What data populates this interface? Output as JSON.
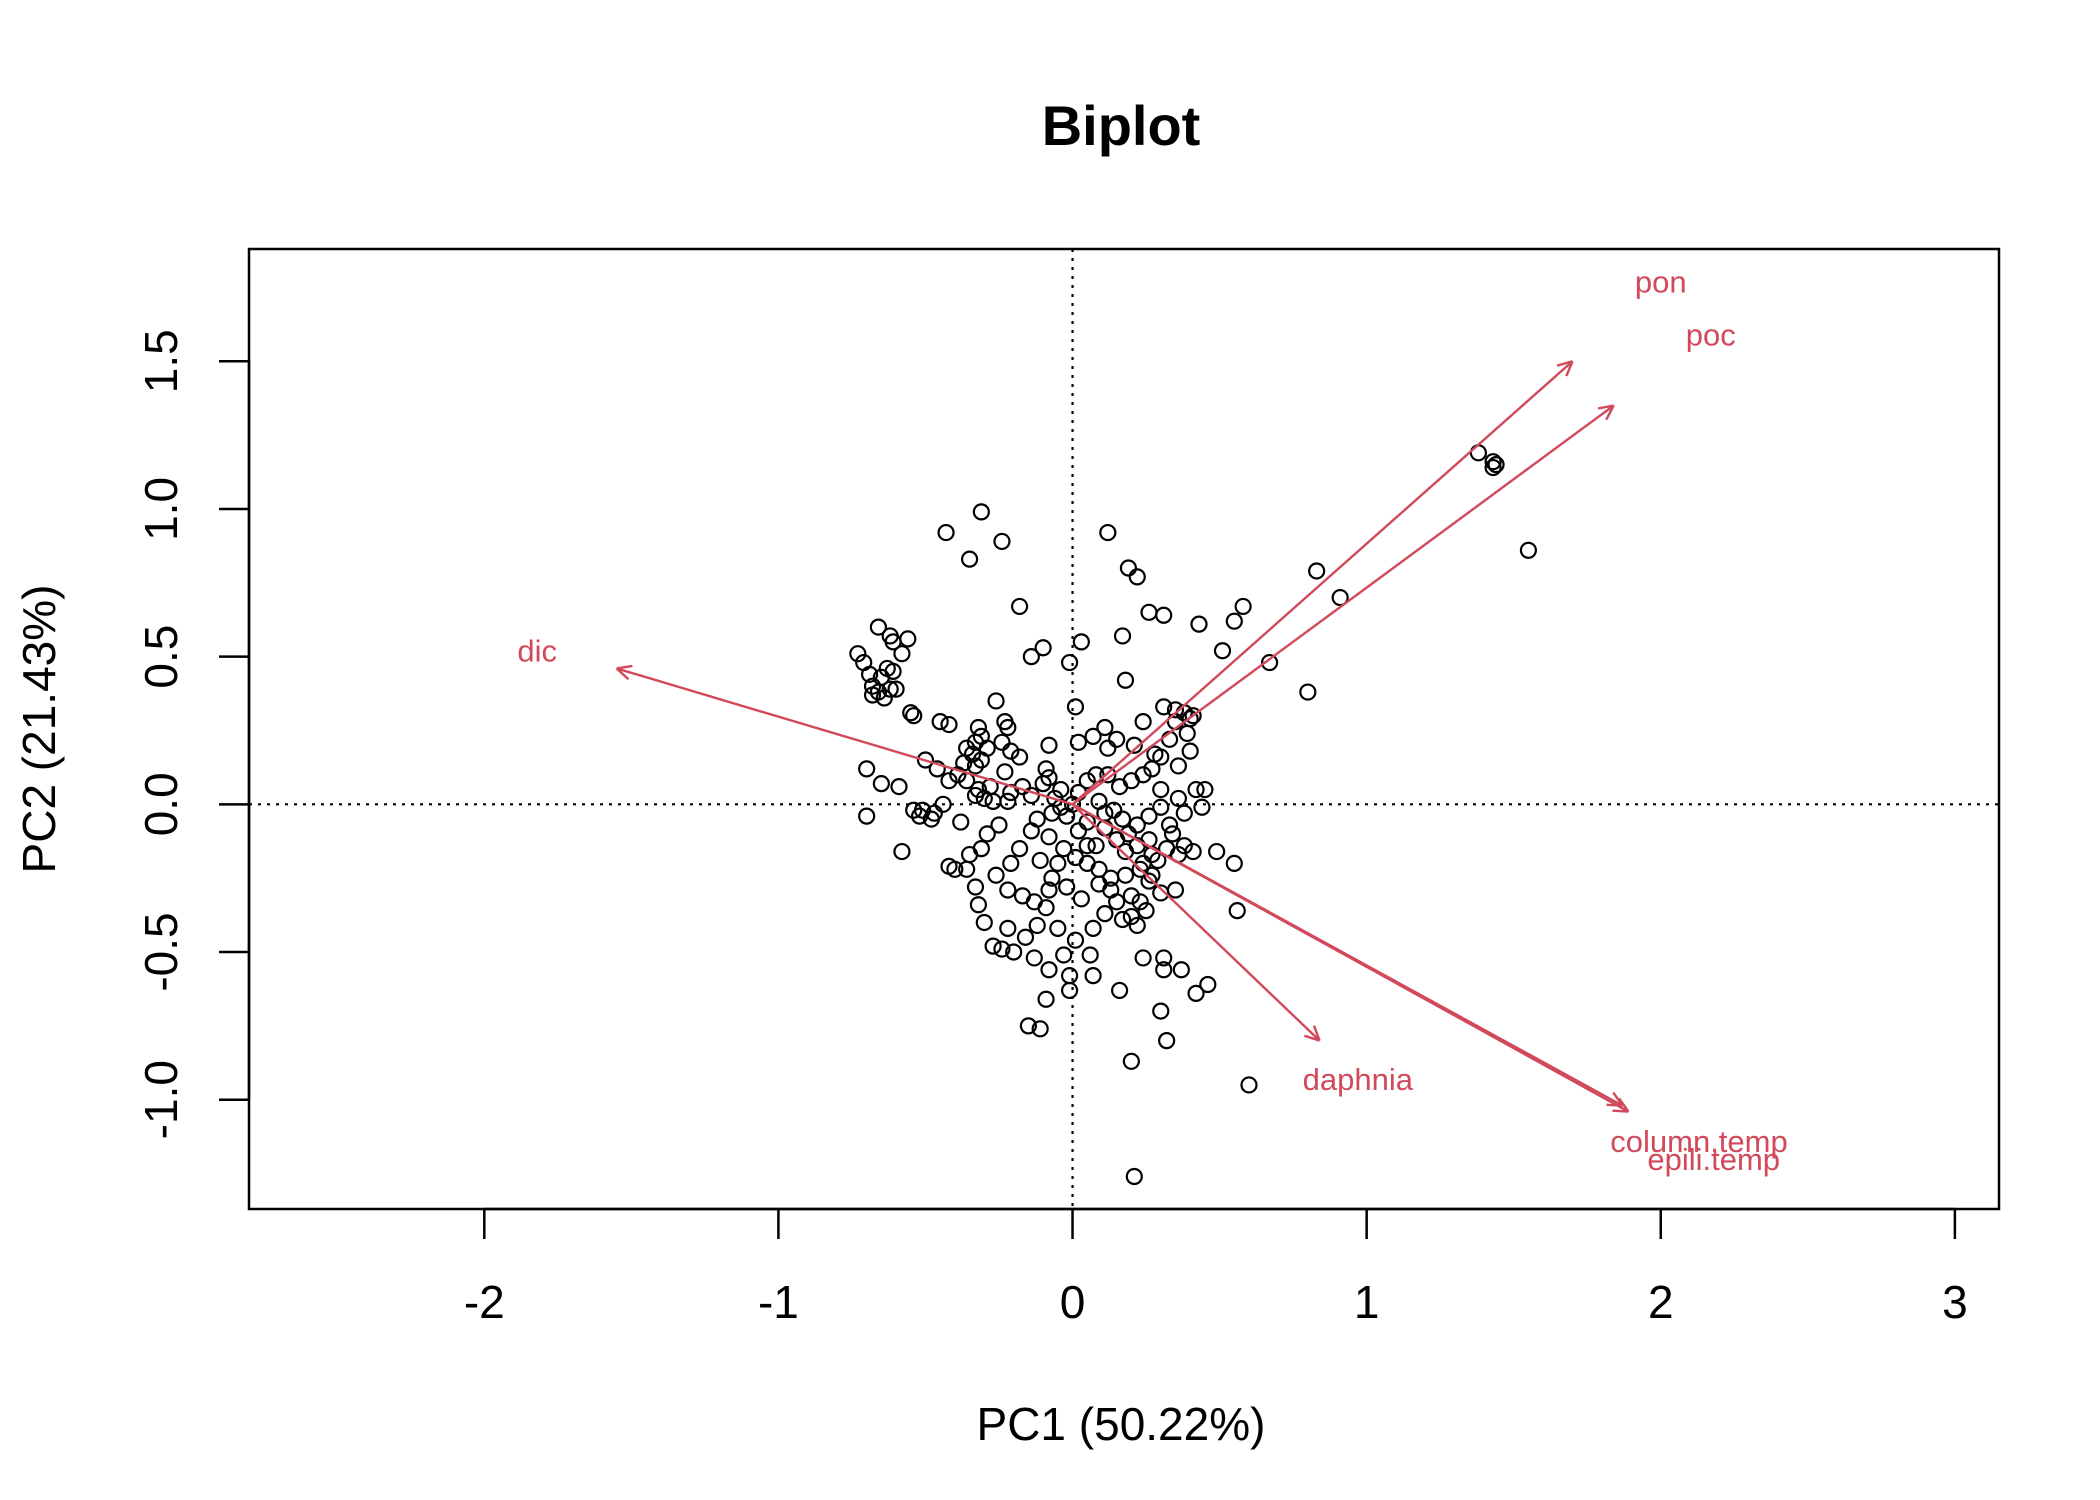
{
  "chart_data": {
    "type": "scatter",
    "title": "Biplot",
    "xlabel": "PC1 (50.22%)",
    "ylabel": "PC2 (21.43%)",
    "xlim": [
      -2.8,
      3.15
    ],
    "ylim": [
      -1.37,
      1.88
    ],
    "xticks": [
      -2,
      -1,
      0,
      1,
      2,
      3
    ],
    "yticks": [
      -1.0,
      -0.5,
      0.0,
      0.5,
      1.0,
      1.5
    ],
    "xtick_labels": [
      "-2",
      "-1",
      "0",
      "1",
      "2",
      "3"
    ],
    "ytick_labels": [
      "-1.0",
      "-0.5",
      "0.0",
      "0.5",
      "1.0",
      "1.5"
    ],
    "reference_lines": {
      "x": 0,
      "y": 0,
      "style": "dotted"
    },
    "grid": false,
    "colors": {
      "points": "#000000",
      "arrows": "#D1495B",
      "axes": "#000000"
    },
    "loadings": [
      {
        "label": "pon",
        "x": 1.7,
        "y": 1.5,
        "label_x": 2.0,
        "label_y": 1.77
      },
      {
        "label": "poc",
        "x": 1.84,
        "y": 1.35,
        "label_x": 2.17,
        "label_y": 1.59
      },
      {
        "label": "dic",
        "x": -1.55,
        "y": 0.46,
        "label_x": -1.82,
        "label_y": 0.52
      },
      {
        "label": "daphnia",
        "x": 0.84,
        "y": -0.8,
        "label_x": 0.97,
        "label_y": -0.93
      },
      {
        "label": "column.temp",
        "x": 1.87,
        "y": -1.02,
        "label_x": 2.13,
        "label_y": -1.14
      },
      {
        "label": "epili.temp",
        "x": 1.89,
        "y": -1.04,
        "label_x": 2.18,
        "label_y": -1.2
      }
    ],
    "points": [
      [
        1.38,
        1.19
      ],
      [
        1.43,
        1.16
      ],
      [
        1.43,
        1.14
      ],
      [
        1.44,
        1.15
      ],
      [
        1.55,
        0.86
      ],
      [
        0.83,
        0.79
      ],
      [
        0.91,
        0.7
      ],
      [
        0.67,
        0.48
      ],
      [
        0.8,
        0.38
      ],
      [
        -0.43,
        0.92
      ],
      [
        -0.31,
        0.99
      ],
      [
        -0.35,
        0.83
      ],
      [
        -0.24,
        0.89
      ],
      [
        0.12,
        0.92
      ],
      [
        0.19,
        0.8
      ],
      [
        0.22,
        0.77
      ],
      [
        -0.18,
        0.67
      ],
      [
        0.26,
        0.65
      ],
      [
        0.31,
        0.64
      ],
      [
        0.58,
        0.67
      ],
      [
        0.55,
        0.62
      ],
      [
        0.43,
        0.61
      ],
      [
        0.51,
        0.52
      ],
      [
        -0.1,
        0.53
      ],
      [
        -0.14,
        0.5
      ],
      [
        0.03,
        0.55
      ],
      [
        0.17,
        0.57
      ],
      [
        0.18,
        0.42
      ],
      [
        -0.01,
        0.48
      ],
      [
        -0.66,
        0.6
      ],
      [
        -0.62,
        0.57
      ],
      [
        -0.61,
        0.55
      ],
      [
        -0.56,
        0.56
      ],
      [
        -0.58,
        0.51
      ],
      [
        -0.73,
        0.51
      ],
      [
        -0.71,
        0.48
      ],
      [
        -0.69,
        0.44
      ],
      [
        -0.65,
        0.43
      ],
      [
        -0.63,
        0.46
      ],
      [
        -0.61,
        0.45
      ],
      [
        -0.68,
        0.4
      ],
      [
        -0.66,
        0.38
      ],
      [
        -0.62,
        0.39
      ],
      [
        -0.6,
        0.39
      ],
      [
        -0.64,
        0.36
      ],
      [
        -0.68,
        0.37
      ],
      [
        -0.55,
        0.31
      ],
      [
        -0.54,
        0.3
      ],
      [
        -0.45,
        0.28
      ],
      [
        -0.42,
        0.27
      ],
      [
        -0.32,
        0.26
      ],
      [
        -0.31,
        0.23
      ],
      [
        -0.23,
        0.28
      ],
      [
        -0.22,
        0.26
      ],
      [
        -0.26,
        0.35
      ],
      [
        -0.33,
        0.21
      ],
      [
        -0.36,
        0.19
      ],
      [
        -0.34,
        0.17
      ],
      [
        -0.31,
        0.15
      ],
      [
        -0.33,
        0.13
      ],
      [
        -0.37,
        0.14
      ],
      [
        -0.29,
        0.19
      ],
      [
        -0.24,
        0.21
      ],
      [
        -0.21,
        0.18
      ],
      [
        -0.18,
        0.16
      ],
      [
        -0.23,
        0.11
      ],
      [
        -0.09,
        0.12
      ],
      [
        -0.08,
        0.09
      ],
      [
        -0.1,
        0.07
      ],
      [
        -0.17,
        0.06
      ],
      [
        -0.21,
        0.04
      ],
      [
        -0.28,
        0.06
      ],
      [
        -0.32,
        0.05
      ],
      [
        -0.36,
        0.08
      ],
      [
        -0.33,
        0.03
      ],
      [
        -0.3,
        0.02
      ],
      [
        -0.27,
        0.01
      ],
      [
        -0.22,
        0.01
      ],
      [
        -0.14,
        0.03
      ],
      [
        -0.06,
        0.02
      ],
      [
        -0.04,
        0.05
      ],
      [
        0.02,
        0.04
      ],
      [
        0.05,
        0.08
      ],
      [
        0.08,
        0.1
      ],
      [
        0.12,
        0.1
      ],
      [
        0.16,
        0.06
      ],
      [
        0.2,
        0.08
      ],
      [
        0.24,
        0.1
      ],
      [
        0.27,
        0.12
      ],
      [
        0.21,
        0.2
      ],
      [
        0.12,
        0.19
      ],
      [
        0.15,
        0.22
      ],
      [
        0.11,
        0.26
      ],
      [
        0.24,
        0.28
      ],
      [
        0.31,
        0.33
      ],
      [
        0.35,
        0.32
      ],
      [
        0.4,
        0.29
      ],
      [
        0.38,
        0.31
      ],
      [
        0.41,
        0.3
      ],
      [
        0.35,
        0.28
      ],
      [
        0.39,
        0.24
      ],
      [
        0.33,
        0.22
      ],
      [
        0.28,
        0.17
      ],
      [
        0.3,
        0.16
      ],
      [
        0.36,
        0.13
      ],
      [
        0.4,
        0.18
      ],
      [
        0.42,
        0.05
      ],
      [
        0.45,
        0.05
      ],
      [
        0.36,
        0.02
      ],
      [
        0.3,
        -0.01
      ],
      [
        0.38,
        -0.03
      ],
      [
        0.44,
        -0.01
      ],
      [
        0.33,
        -0.07
      ],
      [
        0.26,
        -0.04
      ],
      [
        0.22,
        -0.07
      ],
      [
        0.17,
        -0.05
      ],
      [
        0.11,
        -0.03
      ],
      [
        0.05,
        -0.06
      ],
      [
        -0.02,
        -0.04
      ],
      [
        -0.07,
        -0.03
      ],
      [
        -0.12,
        -0.05
      ],
      [
        -0.14,
        -0.09
      ],
      [
        -0.08,
        -0.11
      ],
      [
        -0.03,
        -0.15
      ],
      [
        0.01,
        -0.18
      ],
      [
        0.05,
        -0.2
      ],
      [
        0.09,
        -0.22
      ],
      [
        0.13,
        -0.25
      ],
      [
        0.18,
        -0.24
      ],
      [
        0.24,
        -0.2
      ],
      [
        0.27,
        -0.17
      ],
      [
        0.32,
        -0.15
      ],
      [
        0.36,
        -0.17
      ],
      [
        0.41,
        -0.16
      ],
      [
        0.49,
        -0.16
      ],
      [
        0.55,
        -0.2
      ],
      [
        0.56,
        -0.36
      ],
      [
        0.35,
        -0.29
      ],
      [
        0.3,
        -0.3
      ],
      [
        0.26,
        -0.26
      ],
      [
        0.2,
        -0.31
      ],
      [
        0.15,
        -0.33
      ],
      [
        0.11,
        -0.37
      ],
      [
        0.07,
        -0.42
      ],
      [
        0.01,
        -0.46
      ],
      [
        -0.05,
        -0.42
      ],
      [
        -0.09,
        -0.35
      ],
      [
        -0.13,
        -0.33
      ],
      [
        -0.17,
        -0.31
      ],
      [
        -0.22,
        -0.29
      ],
      [
        -0.26,
        -0.24
      ],
      [
        -0.21,
        -0.2
      ],
      [
        -0.18,
        -0.15
      ],
      [
        -0.11,
        -0.19
      ],
      [
        -0.07,
        -0.25
      ],
      [
        -0.02,
        -0.28
      ],
      [
        0.03,
        -0.32
      ],
      [
        -0.12,
        -0.41
      ],
      [
        -0.16,
        -0.45
      ],
      [
        -0.2,
        -0.5
      ],
      [
        -0.24,
        -0.49
      ],
      [
        -0.27,
        -0.48
      ],
      [
        -0.13,
        -0.52
      ],
      [
        -0.08,
        -0.56
      ],
      [
        -0.03,
        -0.51
      ],
      [
        0.06,
        -0.51
      ],
      [
        -0.01,
        -0.58
      ],
      [
        -0.01,
        -0.63
      ],
      [
        0.07,
        -0.58
      ],
      [
        0.16,
        -0.63
      ],
      [
        0.24,
        -0.52
      ],
      [
        0.31,
        -0.52
      ],
      [
        0.31,
        -0.56
      ],
      [
        0.37,
        -0.56
      ],
      [
        0.42,
        -0.64
      ],
      [
        0.46,
        -0.61
      ],
      [
        0.3,
        -0.7
      ],
      [
        0.32,
        -0.8
      ],
      [
        0.2,
        -0.87
      ],
      [
        0.6,
        -0.95
      ],
      [
        0.21,
        -1.26
      ],
      [
        -0.09,
        -0.66
      ],
      [
        -0.15,
        -0.75
      ],
      [
        -0.11,
        -0.76
      ],
      [
        -0.32,
        -0.34
      ],
      [
        -0.33,
        -0.28
      ],
      [
        -0.36,
        -0.22
      ],
      [
        -0.31,
        -0.15
      ],
      [
        -0.35,
        -0.17
      ],
      [
        -0.42,
        -0.21
      ],
      [
        -0.58,
        -0.16
      ],
      [
        -0.51,
        -0.02
      ],
      [
        -0.48,
        -0.05
      ],
      [
        -0.52,
        -0.04
      ],
      [
        -0.54,
        -0.02
      ],
      [
        -0.47,
        -0.03
      ],
      [
        -0.7,
        -0.04
      ],
      [
        -0.7,
        0.12
      ],
      [
        -0.65,
        0.07
      ],
      [
        -0.59,
        0.06
      ],
      [
        -0.5,
        0.15
      ],
      [
        -0.46,
        0.12
      ],
      [
        -0.42,
        0.08
      ],
      [
        -0.39,
        0.1
      ],
      [
        -0.44,
        0.0
      ],
      [
        -0.38,
        -0.06
      ],
      [
        -0.29,
        -0.1
      ],
      [
        -0.25,
        -0.07
      ],
      [
        -0.4,
        -0.22
      ],
      [
        -0.22,
        -0.42
      ],
      [
        -0.3,
        -0.4
      ],
      [
        0.11,
        -0.08
      ],
      [
        0.08,
        -0.14
      ],
      [
        0.15,
        -0.12
      ],
      [
        0.18,
        -0.16
      ],
      [
        0.22,
        -0.14
      ],
      [
        0.26,
        -0.12
      ],
      [
        0.19,
        -0.1
      ],
      [
        0.14,
        -0.02
      ],
      [
        0.09,
        0.01
      ],
      [
        0.0,
        0.0
      ],
      [
        -0.04,
        -0.01
      ],
      [
        0.02,
        -0.09
      ],
      [
        0.23,
        -0.33
      ],
      [
        0.2,
        -0.38
      ],
      [
        0.22,
        -0.41
      ],
      [
        0.17,
        -0.39
      ],
      [
        0.25,
        -0.36
      ],
      [
        0.13,
        -0.29
      ],
      [
        0.09,
        -0.27
      ],
      [
        0.05,
        -0.14
      ],
      [
        -0.05,
        -0.2
      ],
      [
        -0.08,
        -0.29
      ],
      [
        0.02,
        0.21
      ],
      [
        0.07,
        0.23
      ],
      [
        -0.08,
        0.2
      ],
      [
        0.3,
        0.05
      ],
      [
        0.34,
        -0.1
      ],
      [
        0.38,
        -0.14
      ],
      [
        0.27,
        -0.24
      ],
      [
        0.29,
        -0.19
      ],
      [
        0.23,
        -0.22
      ],
      [
        0.01,
        0.33
      ]
    ]
  }
}
